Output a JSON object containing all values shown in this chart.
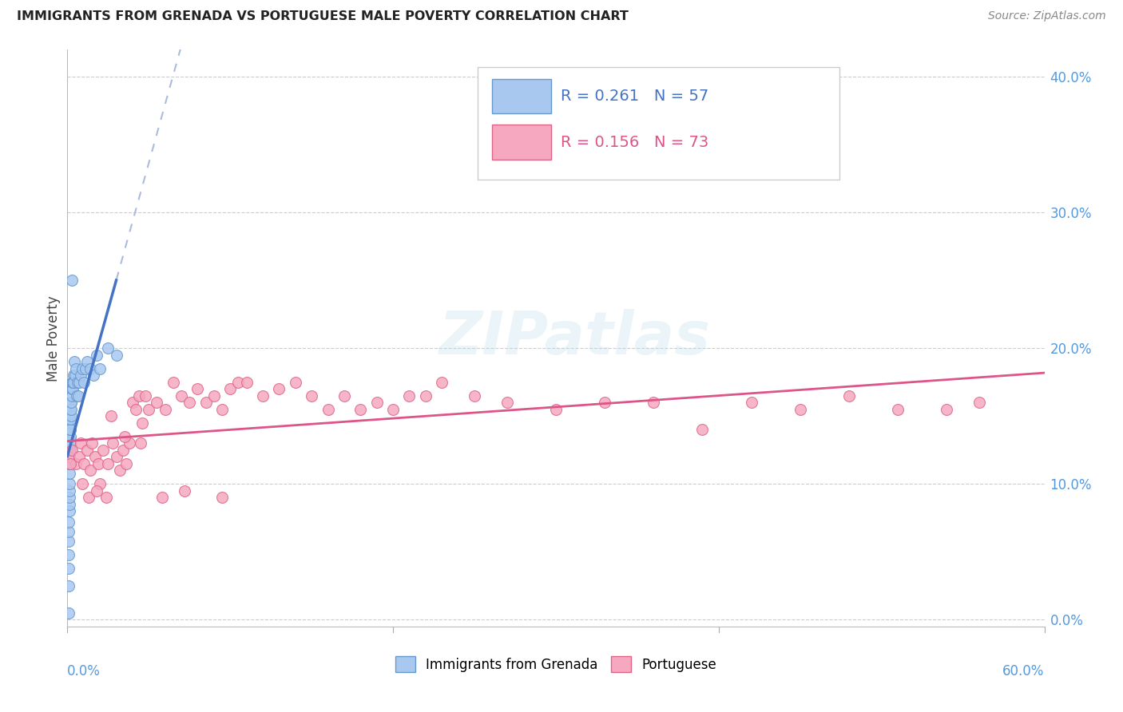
{
  "title": "IMMIGRANTS FROM GRENADA VS PORTUGUESE MALE POVERTY CORRELATION CHART",
  "source": "Source: ZipAtlas.com",
  "ylabel": "Male Poverty",
  "ytick_vals": [
    0.0,
    0.1,
    0.2,
    0.3,
    0.4
  ],
  "xlim": [
    0.0,
    0.6
  ],
  "ylim": [
    -0.005,
    0.42
  ],
  "legend_r1": "R = 0.261",
  "legend_n1": "N = 57",
  "legend_r2": "R = 0.156",
  "legend_n2": "N = 73",
  "color_grenada": "#A8C8F0",
  "color_portuguese": "#F5A8C0",
  "color_grenada_edge": "#6699CC",
  "color_portuguese_edge": "#DD6688",
  "color_grenada_line": "#4472C4",
  "color_portuguese_line": "#DD5588",
  "color_grenada_dash": "#AABBDD",
  "background": "#FFFFFF",
  "grenada_x": [
    0.0008,
    0.0008,
    0.0008,
    0.0008,
    0.0008,
    0.001,
    0.001,
    0.0012,
    0.0012,
    0.0012,
    0.0014,
    0.0014,
    0.0014,
    0.0014,
    0.0015,
    0.0015,
    0.0015,
    0.0015,
    0.0016,
    0.0016,
    0.0018,
    0.0018,
    0.0018,
    0.0018,
    0.002,
    0.002,
    0.002,
    0.0022,
    0.0022,
    0.0024,
    0.0025,
    0.0026,
    0.0028,
    0.003,
    0.003,
    0.0032,
    0.0034,
    0.0036,
    0.0038,
    0.004,
    0.0045,
    0.005,
    0.0055,
    0.006,
    0.0065,
    0.007,
    0.008,
    0.009,
    0.01,
    0.011,
    0.012,
    0.014,
    0.016,
    0.018,
    0.02,
    0.025,
    0.03
  ],
  "grenada_y": [
    0.005,
    0.025,
    0.038,
    0.048,
    0.058,
    0.065,
    0.072,
    0.08,
    0.085,
    0.09,
    0.095,
    0.1,
    0.108,
    0.115,
    0.115,
    0.12,
    0.125,
    0.128,
    0.125,
    0.132,
    0.13,
    0.135,
    0.14,
    0.145,
    0.14,
    0.148,
    0.155,
    0.15,
    0.16,
    0.155,
    0.16,
    0.165,
    0.17,
    0.175,
    0.25,
    0.17,
    0.175,
    0.18,
    0.175,
    0.19,
    0.18,
    0.185,
    0.165,
    0.175,
    0.165,
    0.175,
    0.18,
    0.185,
    0.175,
    0.185,
    0.19,
    0.185,
    0.18,
    0.195,
    0.185,
    0.2,
    0.195
  ],
  "portuguese_x": [
    0.001,
    0.003,
    0.005,
    0.007,
    0.008,
    0.01,
    0.012,
    0.014,
    0.015,
    0.017,
    0.019,
    0.02,
    0.022,
    0.025,
    0.027,
    0.028,
    0.03,
    0.032,
    0.034,
    0.036,
    0.038,
    0.04,
    0.042,
    0.044,
    0.046,
    0.048,
    0.05,
    0.055,
    0.06,
    0.065,
    0.07,
    0.075,
    0.08,
    0.085,
    0.09,
    0.095,
    0.1,
    0.105,
    0.11,
    0.12,
    0.13,
    0.14,
    0.15,
    0.16,
    0.17,
    0.18,
    0.19,
    0.2,
    0.21,
    0.22,
    0.23,
    0.25,
    0.27,
    0.3,
    0.33,
    0.36,
    0.39,
    0.42,
    0.45,
    0.48,
    0.51,
    0.54,
    0.56,
    0.002,
    0.009,
    0.013,
    0.018,
    0.024,
    0.035,
    0.045,
    0.058,
    0.072,
    0.095
  ],
  "portuguese_y": [
    0.12,
    0.125,
    0.115,
    0.12,
    0.13,
    0.115,
    0.125,
    0.11,
    0.13,
    0.12,
    0.115,
    0.1,
    0.125,
    0.115,
    0.15,
    0.13,
    0.12,
    0.11,
    0.125,
    0.115,
    0.13,
    0.16,
    0.155,
    0.165,
    0.145,
    0.165,
    0.155,
    0.16,
    0.155,
    0.175,
    0.165,
    0.16,
    0.17,
    0.16,
    0.165,
    0.155,
    0.17,
    0.175,
    0.175,
    0.165,
    0.17,
    0.175,
    0.165,
    0.155,
    0.165,
    0.155,
    0.16,
    0.155,
    0.165,
    0.165,
    0.175,
    0.165,
    0.16,
    0.155,
    0.16,
    0.16,
    0.14,
    0.16,
    0.155,
    0.165,
    0.155,
    0.155,
    0.16,
    0.115,
    0.1,
    0.09,
    0.095,
    0.09,
    0.135,
    0.13,
    0.09,
    0.095,
    0.09
  ]
}
